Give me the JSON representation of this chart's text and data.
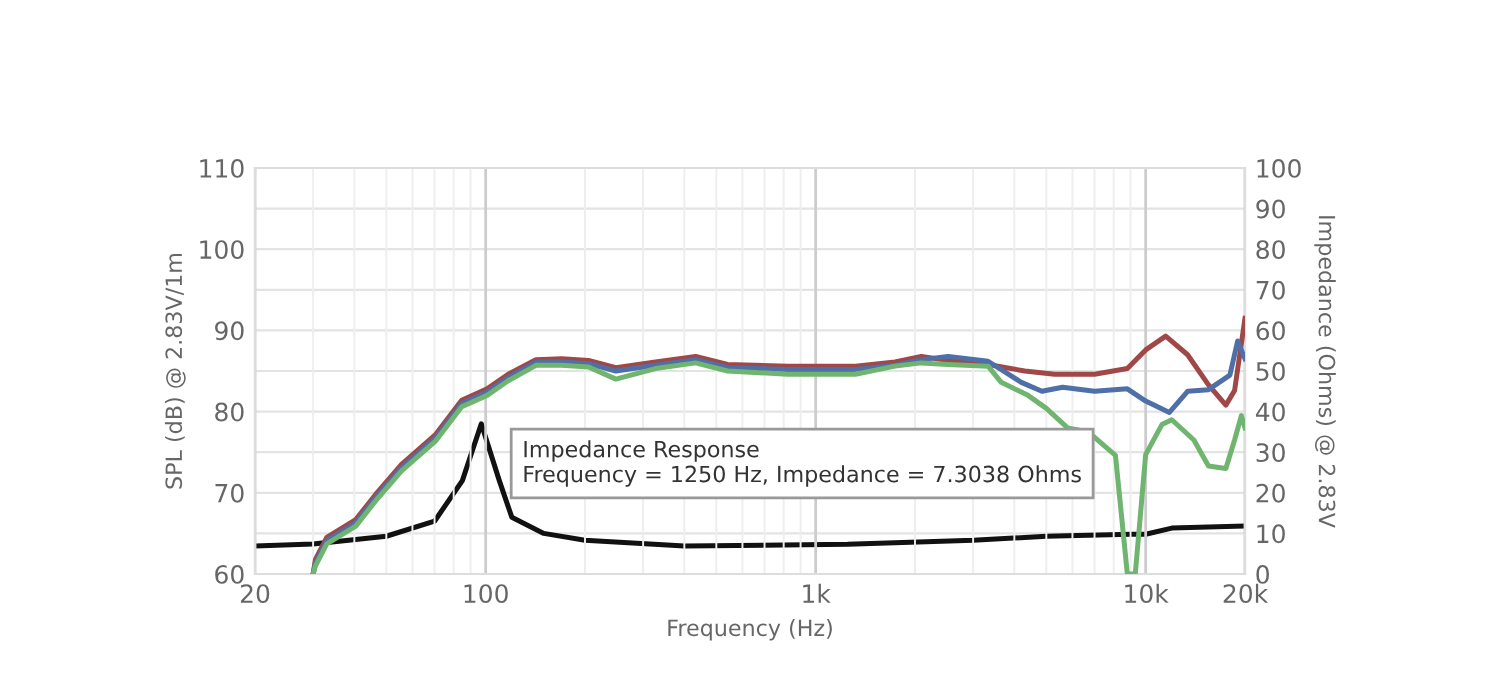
{
  "chart_data": {
    "type": "line",
    "xlabel": "Frequency (Hz)",
    "ylabel": "SPL (dB) @ 2.83V/1m",
    "y2label": "Impedance (Ohms) @ 2.83V",
    "log": "x",
    "grid": true,
    "legend": false,
    "marker": "none",
    "line_style": "solid",
    "xlim": [
      20,
      20000
    ],
    "xticks": [
      20,
      100,
      {
        "value": 1000,
        "label": "1k"
      },
      {
        "value": 10000,
        "label": "10k"
      },
      {
        "value": 20000,
        "label": "20k"
      }
    ],
    "ylim": [
      60,
      110
    ],
    "yticks": [
      60,
      70,
      80,
      90,
      100,
      110
    ],
    "y2lim": [
      0,
      100
    ],
    "y2ticks": [
      0,
      10,
      20,
      30,
      40,
      50,
      60,
      70,
      80,
      90,
      100
    ],
    "series": [
      {
        "color": "#a04848",
        "x": [
          30,
          30.5,
          33,
          40.4,
          46.4,
          55.6,
          70.6,
          84.6,
          101,
          117,
          142,
          170,
          205,
          248,
          327,
          433,
          541,
          822,
          1040,
          1320,
          1740,
          2090,
          2520,
          3330,
          4300,
          5300,
          7000,
          8800,
          10000,
          11500,
          13400,
          15500,
          17500,
          18600,
          20000
        ],
        "values": [
          60,
          61.8,
          64.5,
          66.7,
          69.8,
          73.5,
          77.2,
          81.4,
          82.8,
          84.6,
          86.4,
          86.5,
          86.3,
          85.4,
          86.1,
          86.8,
          85.8,
          85.6,
          85.6,
          85.6,
          86.1,
          86.8,
          86.3,
          85.8,
          85,
          84.6,
          84.6,
          85.3,
          87.6,
          89.3,
          87,
          83.3,
          80.8,
          82.6,
          91.5
        ]
      },
      {
        "color": "#4f6fa8",
        "x": [
          30,
          30.5,
          33,
          40.4,
          46.4,
          55.6,
          70.6,
          84.6,
          101,
          117,
          142,
          170,
          205,
          248,
          327,
          433,
          541,
          822,
          1040,
          1320,
          1740,
          2090,
          2520,
          3330,
          4200,
          4850,
          5600,
          7000,
          8800,
          10000,
          11800,
          13400,
          15500,
          18000,
          19000,
          20000
        ],
        "values": [
          60,
          61.4,
          64.1,
          66.3,
          69.4,
          73.1,
          76.8,
          81,
          82.4,
          84.2,
          86.1,
          86.1,
          85.9,
          85,
          85.7,
          86.4,
          85.4,
          85.2,
          85.2,
          85.2,
          85.7,
          86.4,
          86.8,
          86.2,
          83.6,
          82.5,
          83,
          82.5,
          82.8,
          81.3,
          79.9,
          82.5,
          82.7,
          84.5,
          88.7,
          86.5
        ]
      },
      {
        "color": "#6fb46f",
        "x": [
          30,
          30.5,
          33,
          40.4,
          46.4,
          55.6,
          70.6,
          84.6,
          101,
          117,
          142,
          170,
          205,
          248,
          327,
          433,
          541,
          822,
          1040,
          1320,
          1740,
          2090,
          2520,
          3330,
          3650,
          4400,
          5000,
          5800,
          6700,
          8100,
          8800,
          9300,
          10000,
          11200,
          12000,
          14000,
          15500,
          17500,
          18600,
          19500,
          20000
        ],
        "values": [
          60,
          61,
          63.7,
          65.9,
          69,
          72.7,
          76.4,
          80.6,
          82,
          83.8,
          85.7,
          85.7,
          85.5,
          84,
          85.3,
          86,
          85,
          84.6,
          84.6,
          84.6,
          85.6,
          86,
          85.8,
          85.6,
          83.6,
          82,
          80.4,
          78,
          77.5,
          74.6,
          60,
          60,
          74.7,
          78.4,
          79,
          76.5,
          73.3,
          73,
          76.5,
          79.5,
          78
        ]
      },
      {
        "color": "#111111",
        "axis": "y2",
        "x": [
          20,
          30,
          50,
          70,
          85,
          97,
          110,
          120,
          150,
          200,
          400,
          1250,
          3000,
          5000,
          9000,
          10000,
          12000,
          20000
        ],
        "values": [
          6.9,
          7.4,
          9.3,
          13,
          23,
          37,
          23,
          14,
          10,
          8.3,
          6.9,
          7.3,
          8.3,
          9.3,
          9.8,
          9.8,
          11.3,
          11.8
        ]
      }
    ],
    "annotations": [
      "Impedance Response\nFrequency = 1250 Hz, Impedance = 7.3038 Ohms"
    ]
  }
}
